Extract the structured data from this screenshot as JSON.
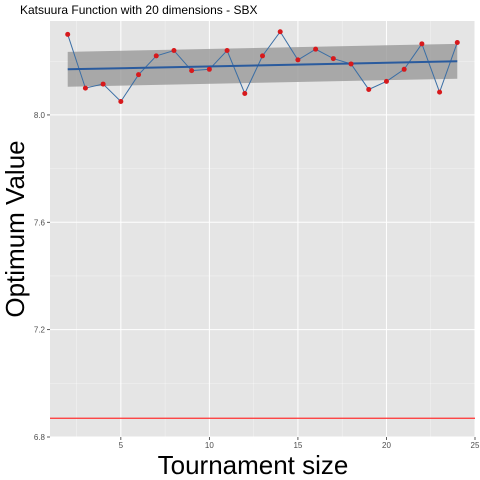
{
  "chart_data": {
    "type": "line",
    "title": "Katsuura Function with 20 dimensions -  SBX",
    "xlabel": "Tournament size",
    "ylabel": "Optimum Value",
    "xlim": [
      1,
      25
    ],
    "ylim": [
      6.8,
      8.35
    ],
    "x_ticks": [
      5,
      10,
      15,
      20,
      25
    ],
    "x_tick_labels": [
      "5",
      "10",
      "15",
      "20",
      "25"
    ],
    "y_ticks": [
      6.8,
      7.2,
      7.6,
      8.0
    ],
    "y_tick_labels": [
      "6.8",
      "7.2",
      "7.6",
      "8.0"
    ],
    "grid": true,
    "series": [
      {
        "x": [
          2,
          3,
          4,
          5,
          6,
          7,
          8,
          9,
          10,
          11,
          12,
          13,
          14,
          15,
          16,
          17,
          18,
          19,
          20,
          21,
          22,
          23,
          24
        ],
        "values": [
          8.3,
          8.1,
          8.115,
          8.05,
          8.15,
          8.22,
          8.24,
          8.165,
          8.17,
          8.24,
          8.08,
          8.22,
          8.31,
          8.205,
          8.245,
          8.21,
          8.19,
          8.095,
          8.125,
          8.17,
          8.265,
          8.085,
          8.27
        ],
        "line_color": "#3a6ea5",
        "point_color": "#d7191c"
      }
    ],
    "trend": {
      "x": [
        2,
        24
      ],
      "values": [
        8.17,
        8.2
      ],
      "color": "#2a5b9e",
      "band_upper": [
        8.235,
        8.265
      ],
      "band_lower": [
        8.105,
        8.135
      ],
      "band_color": "#999999"
    },
    "reference_line": {
      "value": 6.87,
      "color": "#ff3030"
    },
    "colors": {
      "panel_bg": "#e5e5e5",
      "grid": "#ffffff"
    }
  }
}
